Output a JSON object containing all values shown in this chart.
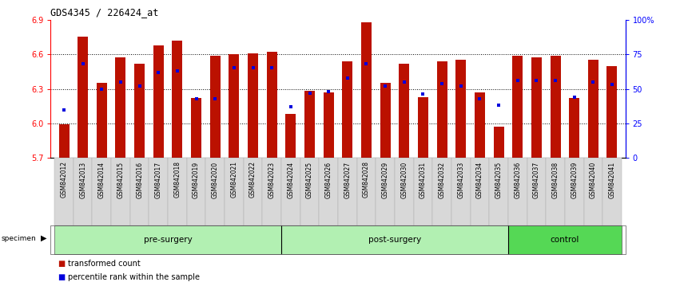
{
  "title": "GDS4345 / 226424_at",
  "samples": [
    "GSM842012",
    "GSM842013",
    "GSM842014",
    "GSM842015",
    "GSM842016",
    "GSM842017",
    "GSM842018",
    "GSM842019",
    "GSM842020",
    "GSM842021",
    "GSM842022",
    "GSM842023",
    "GSM842024",
    "GSM842025",
    "GSM842026",
    "GSM842027",
    "GSM842028",
    "GSM842029",
    "GSM842030",
    "GSM842031",
    "GSM842032",
    "GSM842033",
    "GSM842034",
    "GSM842035",
    "GSM842036",
    "GSM842037",
    "GSM842038",
    "GSM842039",
    "GSM842040",
    "GSM842041"
  ],
  "bar_values": [
    5.99,
    6.75,
    6.35,
    6.57,
    6.52,
    6.68,
    6.72,
    6.22,
    6.59,
    6.6,
    6.61,
    6.62,
    6.08,
    6.28,
    6.27,
    6.54,
    6.88,
    6.35,
    6.52,
    6.23,
    6.54,
    6.55,
    6.27,
    5.97,
    6.59,
    6.57,
    6.59,
    6.22,
    6.55,
    6.5
  ],
  "percentile_values": [
    35,
    68,
    50,
    55,
    52,
    62,
    63,
    43,
    43,
    65,
    65,
    65,
    37,
    47,
    48,
    58,
    68,
    52,
    55,
    46,
    54,
    52,
    43,
    38,
    56,
    56,
    56,
    44,
    55,
    53
  ],
  "groups": [
    {
      "label": "pre-surgery",
      "start": 0,
      "end": 12,
      "color": "#b2f0b2"
    },
    {
      "label": "post-surgery",
      "start": 12,
      "end": 24,
      "color": "#b2f0b2"
    },
    {
      "label": "control",
      "start": 24,
      "end": 30,
      "color": "#55d855"
    }
  ],
  "bar_color": "#bb1100",
  "percentile_color": "#0000dd",
  "ylim_left": [
    5.7,
    6.9
  ],
  "ylim_right": [
    0,
    100
  ],
  "yticks_left": [
    5.7,
    6.0,
    6.3,
    6.6,
    6.9
  ],
  "yticks_right": [
    0,
    25,
    50,
    75,
    100
  ],
  "ytick_labels_right": [
    "0",
    "25",
    "50",
    "75",
    "100%"
  ],
  "grid_values": [
    6.0,
    6.3,
    6.6
  ],
  "bar_width": 0.55,
  "legend_items": [
    {
      "label": "transformed count",
      "color": "#bb1100"
    },
    {
      "label": "percentile rank within the sample",
      "color": "#0000dd"
    }
  ],
  "bg_gray": "#d8d8d8",
  "bg_white": "#ffffff"
}
